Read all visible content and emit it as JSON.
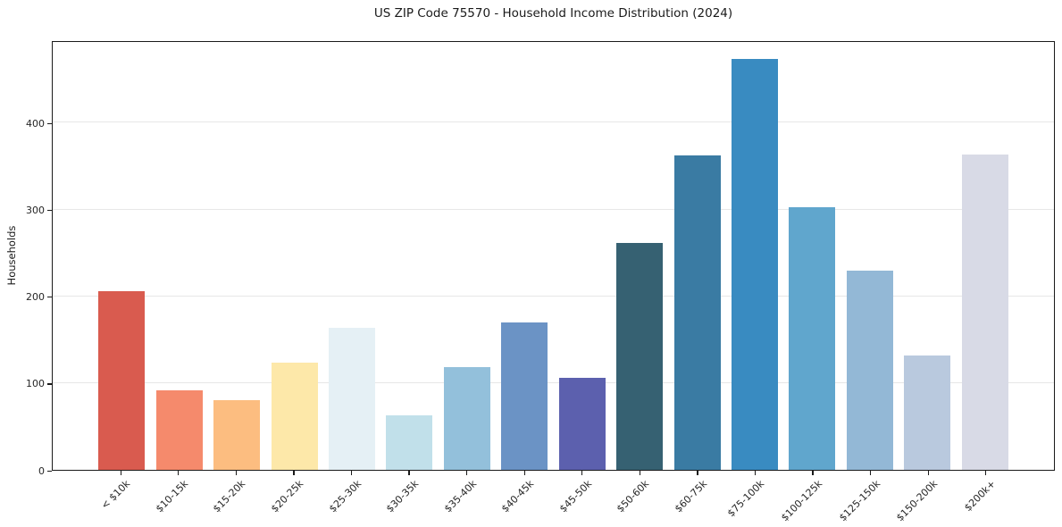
{
  "chart_data": {
    "type": "bar",
    "title": "US ZIP Code 75570 - Household Income Distribution (2024)",
    "xlabel": "",
    "ylabel": "Households",
    "categories": [
      "< $10k",
      "$10-15k",
      "$15-20k",
      "$20-25k",
      "$25-30k",
      "$30-35k",
      "$35-40k",
      "$40-45k",
      "$45-50k",
      "$50-60k",
      "$60-75k",
      "$75-100k",
      "$100-125k",
      "$125-150k",
      "$150-200k",
      "$200k+"
    ],
    "values": [
      206,
      92,
      80,
      123,
      164,
      63,
      118,
      170,
      106,
      261,
      362,
      473,
      303,
      230,
      132,
      363
    ],
    "bar_colors": [
      "#d95b4f",
      "#f58a6c",
      "#fcbd80",
      "#fde8a9",
      "#e5f0f5",
      "#c1e0ea",
      "#93c0db",
      "#6b93c5",
      "#5c60ae",
      "#366172",
      "#3a7ba3",
      "#398bc1",
      "#60a6cd",
      "#93b8d6",
      "#b9c9de",
      "#d8dae6"
    ],
    "yticks": [
      0,
      100,
      200,
      300,
      400
    ],
    "ylim": [
      0,
      495
    ],
    "grid": "horizontal",
    "gridline_color": "#e7e7e7",
    "background": "#ffffff",
    "legend": "none",
    "x_tick_rotation_deg": 45
  }
}
